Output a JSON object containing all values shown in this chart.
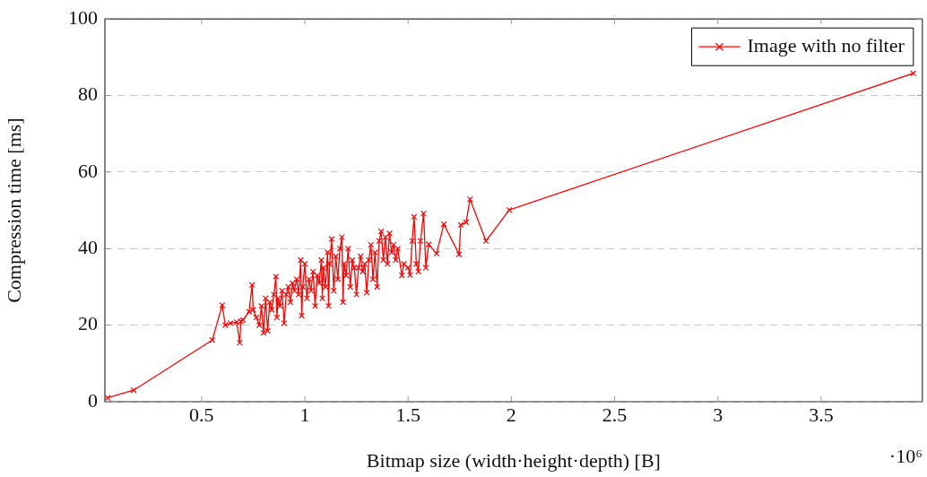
{
  "chart_data": {
    "type": "line",
    "xlabel": "Bitmap size (width·height·depth) [B]",
    "ylabel": "Compression time [ms]",
    "xlim": [
      0.032,
      3.99
    ],
    "xticks": [
      0.5,
      1,
      1.5,
      2,
      2.5,
      3,
      3.5
    ],
    "ylim": [
      0,
      100
    ],
    "yticks": [
      0,
      20,
      40,
      60,
      80,
      100
    ],
    "grid": "y",
    "legend": "top right",
    "marker": "cross",
    "line_style": "solid",
    "annotations": [
      "·10⁶"
    ],
    "series": [
      {
        "name": "Image with no filter",
        "color": "#ff0000",
        "x": [
          0.045,
          0.171,
          0.552,
          0.6,
          0.615,
          0.64,
          0.67,
          0.685,
          0.69,
          0.7,
          0.73,
          0.745,
          0.75,
          0.765,
          0.78,
          0.79,
          0.8,
          0.81,
          0.82,
          0.83,
          0.84,
          0.85,
          0.86,
          0.865,
          0.87,
          0.88,
          0.89,
          0.9,
          0.91,
          0.92,
          0.93,
          0.94,
          0.95,
          0.96,
          0.97,
          0.98,
          0.985,
          0.99,
          1.0,
          1.01,
          1.02,
          1.03,
          1.04,
          1.05,
          1.06,
          1.07,
          1.08,
          1.085,
          1.09,
          1.1,
          1.11,
          1.115,
          1.12,
          1.13,
          1.14,
          1.15,
          1.16,
          1.17,
          1.18,
          1.185,
          1.19,
          1.2,
          1.21,
          1.22,
          1.23,
          1.24,
          1.25,
          1.26,
          1.27,
          1.28,
          1.29,
          1.3,
          1.31,
          1.32,
          1.33,
          1.34,
          1.35,
          1.36,
          1.37,
          1.38,
          1.39,
          1.4,
          1.41,
          1.42,
          1.43,
          1.44,
          1.45,
          1.47,
          1.48,
          1.5,
          1.51,
          1.52,
          1.529,
          1.54,
          1.55,
          1.56,
          1.575,
          1.586,
          1.6,
          1.638,
          1.673,
          1.747,
          1.755,
          1.781,
          1.8,
          1.877,
          1.99,
          3.946
        ],
        "values": [
          1,
          3.0,
          16.1,
          25.2,
          20,
          20.5,
          20.8,
          15.4,
          21,
          21.3,
          23.5,
          30.5,
          24,
          22,
          20,
          25,
          18,
          27,
          18.5,
          26,
          24,
          28,
          32.7,
          22,
          27,
          25,
          29,
          20.5,
          28,
          30,
          26,
          31,
          29,
          32,
          28,
          37,
          22.5,
          30,
          36,
          27,
          32,
          29,
          34,
          25,
          33,
          31,
          37,
          27,
          35,
          30,
          39,
          25,
          36,
          42.5,
          29,
          38,
          32,
          40,
          43,
          26,
          36,
          33,
          40,
          30,
          37,
          35,
          28,
          35,
          38,
          34,
          36,
          28.5,
          37,
          41,
          32,
          39,
          30,
          42,
          44.5,
          37,
          43,
          36,
          44,
          39,
          41,
          37,
          40,
          33,
          36,
          35,
          33.1,
          42,
          48.3,
          36,
          34,
          42,
          49.2,
          35,
          41.1,
          38.7,
          46.4,
          38.5,
          46.2,
          46.9,
          52.9,
          42.0,
          50.1,
          85.8
        ]
      }
    ]
  }
}
